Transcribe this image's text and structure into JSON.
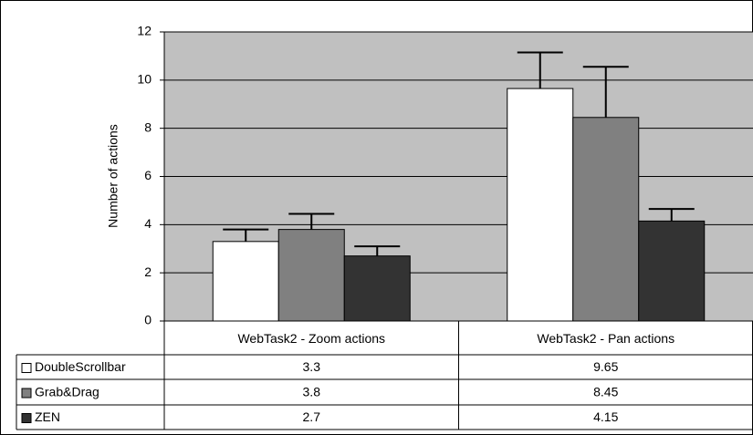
{
  "chart_data": {
    "type": "bar",
    "y_label": "Number of actions",
    "categories": [
      "WebTask2 - Zoom actions",
      "WebTask2 - Pan actions"
    ],
    "series": [
      {
        "name": "DoubleScrollbar",
        "color": "#ffffff",
        "values": [
          3.3,
          9.65
        ],
        "errors": [
          0.5,
          1.5
        ]
      },
      {
        "name": "Grab&Drag",
        "color": "#808080",
        "values": [
          3.8,
          8.45
        ],
        "errors": [
          0.65,
          2.1
        ]
      },
      {
        "name": "ZEN",
        "color": "#333333",
        "values": [
          2.7,
          4.15
        ],
        "errors": [
          0.4,
          0.5
        ]
      }
    ],
    "ylim": [
      0,
      12
    ],
    "yticks": [
      0,
      2,
      4,
      6,
      8,
      10,
      12
    ],
    "grid": true,
    "plot_background": "#c0c0c0"
  }
}
